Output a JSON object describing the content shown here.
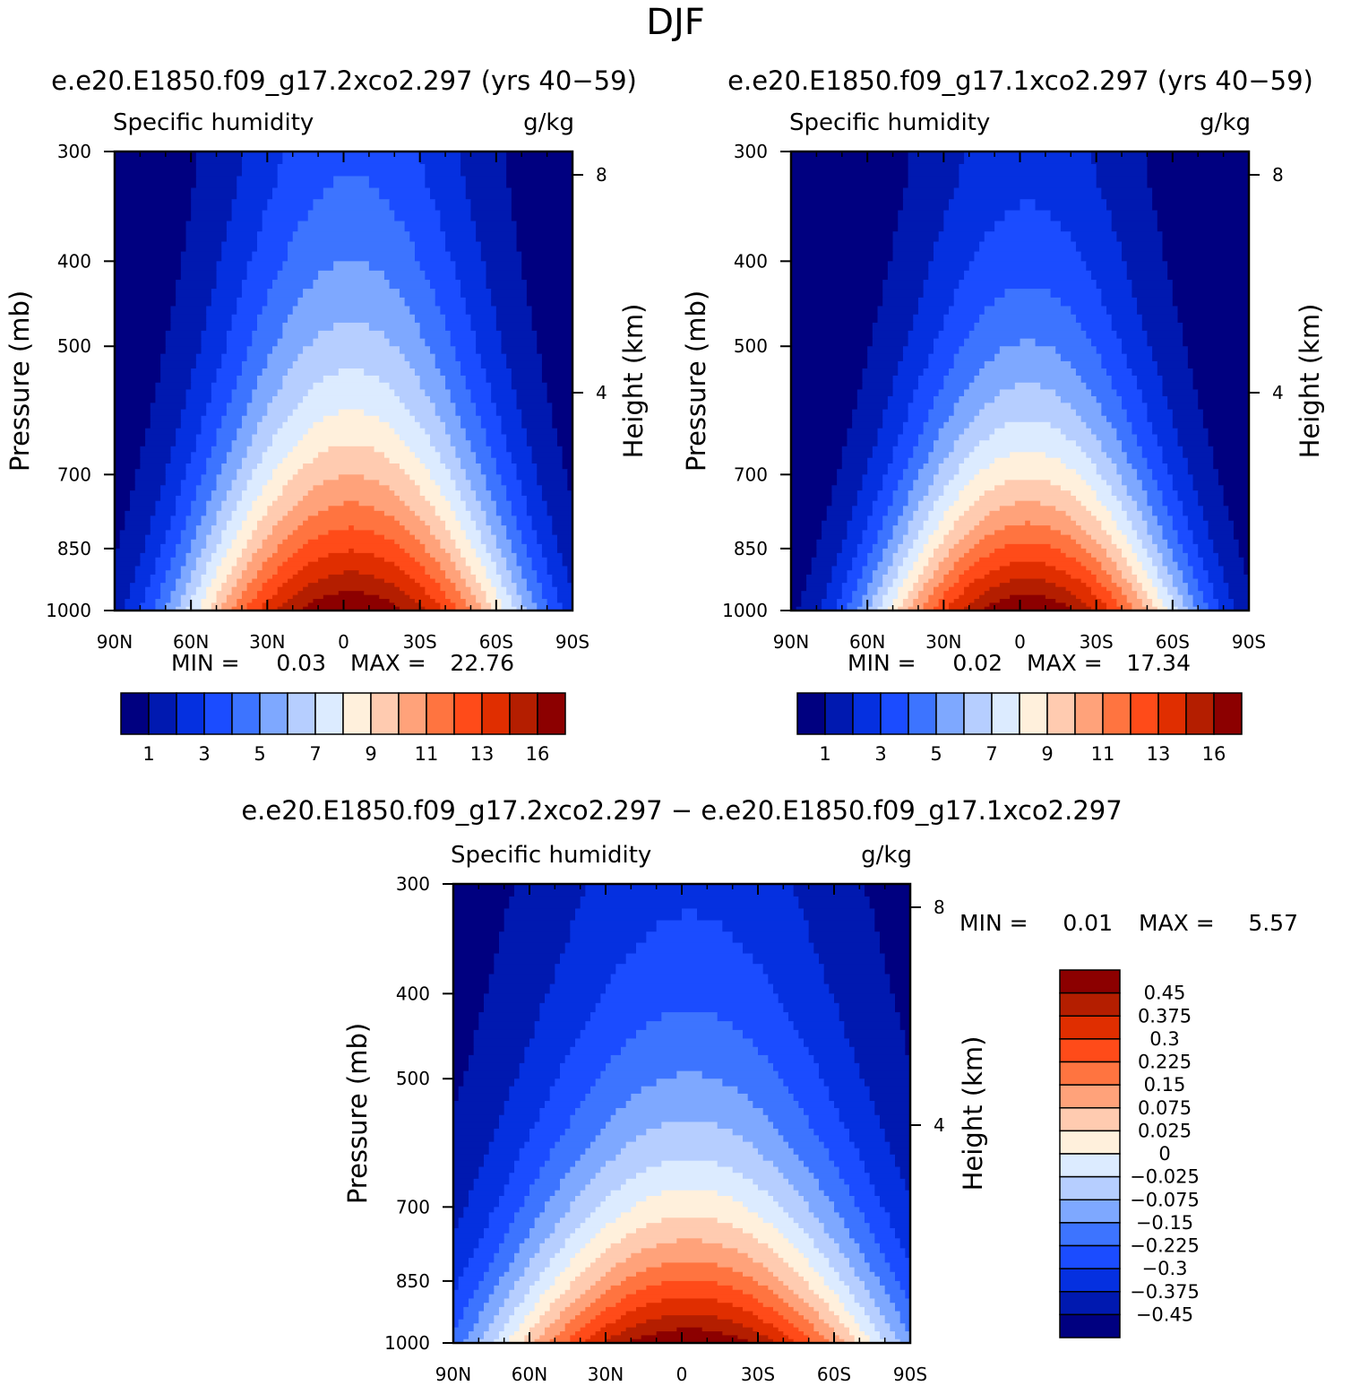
{
  "figure": {
    "title": "DJF",
    "colors": {
      "abs_palette": [
        "#000080",
        "#0019b0",
        "#0530e0",
        "#1b4cff",
        "#3d74ff",
        "#7ea8ff",
        "#b6ceff",
        "#dcebff",
        "#fff0dc",
        "#ffcbb0",
        "#ffa27a",
        "#ff7440",
        "#ff4b19",
        "#e02e00",
        "#b41e00",
        "#8c0000"
      ],
      "diff_palette": [
        "#000080",
        "#0019b0",
        "#0530e0",
        "#1b4cff",
        "#3d74ff",
        "#7ea8ff",
        "#b6ceff",
        "#dcebff",
        "#fff0dc",
        "#ffcbb0",
        "#ffa27a",
        "#ff7440",
        "#ff4b19",
        "#e02e00",
        "#b41e00",
        "#8c0000"
      ]
    }
  },
  "chart_data": [
    {
      "type": "heatmap",
      "title": "e.e20.E1850.f09_g17.2xco2.297 (yrs 40−59)",
      "left_label": "Specific humidity",
      "units": "g/kg",
      "ylabel": "Pressure (mb)",
      "ylabel_right": "Height (km)",
      "x_ticks": [
        "90N",
        "60N",
        "30N",
        "0",
        "30S",
        "60S",
        "90S"
      ],
      "x_values": [
        90,
        60,
        30,
        0,
        -30,
        -60,
        -90
      ],
      "y_ticks": [
        "300",
        "400",
        "500",
        "700",
        "850",
        "1000"
      ],
      "y_values": [
        300,
        400,
        500,
        700,
        850,
        1000
      ],
      "ylim": [
        300,
        1000
      ],
      "right_ticks": [
        "8",
        "4"
      ],
      "right_values": [
        8,
        4
      ],
      "stats": {
        "min_label": "MIN =",
        "min": "0.03",
        "max_label": "MAX =",
        "max": "22.76"
      },
      "colorbar": {
        "orientation": "horizontal",
        "labels": [
          "1",
          "3",
          "5",
          "7",
          "9",
          "11",
          "13",
          "16"
        ]
      },
      "field": {
        "peak_lat": -3,
        "peak": 22.76,
        "base": 0.03,
        "height_scale_mb": 230,
        "lat_scale": 32
      }
    },
    {
      "type": "heatmap",
      "title": "e.e20.E1850.f09_g17.1xco2.297 (yrs 40−59)",
      "left_label": "Specific humidity",
      "units": "g/kg",
      "ylabel": "Pressure (mb)",
      "ylabel_right": "Height (km)",
      "x_ticks": [
        "90N",
        "60N",
        "30N",
        "0",
        "30S",
        "60S",
        "90S"
      ],
      "x_values": [
        90,
        60,
        30,
        0,
        -30,
        -60,
        -90
      ],
      "y_ticks": [
        "300",
        "400",
        "500",
        "700",
        "850",
        "1000"
      ],
      "y_values": [
        300,
        400,
        500,
        700,
        850,
        1000
      ],
      "ylim": [
        300,
        1000
      ],
      "right_ticks": [
        "8",
        "4"
      ],
      "right_values": [
        8,
        4
      ],
      "stats": {
        "min_label": "MIN =",
        "min": "0.02",
        "max_label": "MAX =",
        "max": "17.34"
      },
      "colorbar": {
        "orientation": "horizontal",
        "labels": [
          "1",
          "3",
          "5",
          "7",
          "9",
          "11",
          "13",
          "16"
        ]
      },
      "field": {
        "peak_lat": -3,
        "peak": 17.34,
        "base": 0.02,
        "height_scale_mb": 205,
        "lat_scale": 30
      }
    },
    {
      "type": "heatmap",
      "title": "e.e20.E1850.f09_g17.2xco2.297 − e.e20.E1850.f09_g17.1xco2.297",
      "left_label": "Specific humidity",
      "units": "g/kg",
      "ylabel": "Pressure (mb)",
      "ylabel_right": "Height (km)",
      "x_ticks": [
        "90N",
        "60N",
        "30N",
        "0",
        "30S",
        "60S",
        "90S"
      ],
      "x_values": [
        90,
        60,
        30,
        0,
        -30,
        -60,
        -90
      ],
      "y_ticks": [
        "300",
        "400",
        "500",
        "700",
        "850",
        "1000"
      ],
      "y_values": [
        300,
        400,
        500,
        700,
        850,
        1000
      ],
      "ylim": [
        300,
        1000
      ],
      "right_ticks": [
        "8",
        "4"
      ],
      "right_values": [
        8,
        4
      ],
      "stats": {
        "min_label": "MIN =",
        "min": "0.01",
        "max_label": "MAX =",
        "max": "5.57"
      },
      "colorbar": {
        "orientation": "vertical",
        "labels": [
          "0.45",
          "0.375",
          "0.3",
          "0.225",
          "0.15",
          "0.075",
          "0.025",
          "0",
          "−0.025",
          "−0.075",
          "−0.15",
          "−0.225",
          "−0.3",
          "−0.375",
          "−0.45"
        ]
      },
      "field": {
        "peak_lat": -3,
        "peak": 5.57,
        "base": 0.01,
        "height_scale_mb": 260,
        "lat_scale": 45
      }
    }
  ]
}
